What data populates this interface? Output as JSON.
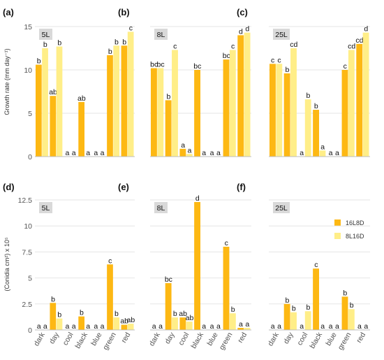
{
  "colors": {
    "series1": "#FDB813",
    "series2": "#FFEE88",
    "vol_box": "#D9D9D9",
    "grid": "#E6E6E6"
  },
  "legend": {
    "items": [
      "16L8D",
      "8L16D"
    ]
  },
  "chart_data": [
    {
      "type": "bar",
      "panel": "(a)",
      "volume": "5L",
      "categories": [
        "dark",
        "day",
        "cool",
        "black",
        "blue",
        "green",
        "red"
      ],
      "ylabel": "Growth rate (mm day⁻¹)",
      "ylim": [
        0,
        15
      ],
      "yticks": [
        "0",
        "5",
        "10",
        "15"
      ],
      "series": [
        {
          "name": "16L8D",
          "values": [
            10.6,
            7.0,
            0,
            6.3,
            0,
            11.7,
            12.8
          ],
          "sig": [
            "b",
            "ab",
            "a",
            "ab",
            "a",
            "b",
            "b"
          ]
        },
        {
          "name": "8L16D",
          "values": [
            12.5,
            12.7,
            0,
            0,
            0,
            12.8,
            14.4
          ],
          "sig": [
            "b",
            "b",
            "a",
            "a",
            "a",
            "b",
            "c"
          ]
        }
      ]
    },
    {
      "type": "bar",
      "panel": "(b)",
      "volume": "8L",
      "categories": [
        "dark",
        "day",
        "cool",
        "black",
        "blue",
        "green",
        "red"
      ],
      "ylim": [
        0,
        15
      ],
      "yticks": [
        "0",
        "5",
        "10",
        "15"
      ],
      "series": [
        {
          "name": "16L8D",
          "values": [
            10.2,
            6.5,
            0.9,
            10.0,
            0,
            11.2,
            14.0
          ],
          "sig": [
            "bc",
            "b",
            "a",
            "bc",
            "a",
            "bc",
            "d"
          ]
        },
        {
          "name": "8L16D",
          "values": [
            10.2,
            12.3,
            0.3,
            0,
            0,
            12.3,
            14.3
          ],
          "sig": [
            "bc",
            "c",
            "a",
            "a",
            "a",
            "c",
            "d"
          ]
        }
      ]
    },
    {
      "type": "bar",
      "panel": "(c)",
      "volume": "25L",
      "categories": [
        "dark",
        "day",
        "cool",
        "black",
        "blue",
        "green",
        "red"
      ],
      "ylim": [
        0,
        15
      ],
      "yticks": [
        "0",
        "5",
        "10",
        "15"
      ],
      "series": [
        {
          "name": "16L8D",
          "values": [
            10.7,
            9.6,
            0,
            5.4,
            0,
            10.0,
            13.0
          ],
          "sig": [
            "c",
            "b",
            "a",
            "b",
            "a",
            "c",
            "cd"
          ]
        },
        {
          "name": "8L16D",
          "values": [
            10.7,
            12.5,
            6.6,
            0.7,
            0,
            12.3,
            14.3
          ],
          "sig": [
            "c",
            "cd",
            "b",
            "a",
            "a",
            "cd",
            "d"
          ]
        }
      ]
    },
    {
      "type": "bar",
      "panel": "(d)",
      "volume": "5L",
      "categories": [
        "dark",
        "day",
        "cool",
        "black",
        "blue",
        "green",
        "red"
      ],
      "ylabel": "(Conidia cm²) x 10⁵",
      "ylim": [
        0,
        12.5
      ],
      "yticks": [
        "0",
        "2.5",
        "5",
        "7.5",
        "10",
        "12.5"
      ],
      "series": [
        {
          "name": "16L8D",
          "values": [
            0,
            2.6,
            0,
            1.3,
            0,
            6.3,
            0.5
          ],
          "sig": [
            "a",
            "b",
            "a",
            "b",
            "a",
            "c",
            "ab"
          ]
        },
        {
          "name": "8L16D",
          "values": [
            0,
            1.1,
            0,
            0,
            0,
            1.2,
            0.6
          ],
          "sig": [
            "a",
            "b",
            "a",
            "a",
            "a",
            "b",
            "ab"
          ]
        }
      ]
    },
    {
      "type": "bar",
      "panel": "(e)",
      "volume": "8L",
      "categories": [
        "dark",
        "day",
        "cool",
        "black",
        "blue",
        "green",
        "red"
      ],
      "ylim": [
        0,
        12.5
      ],
      "yticks": [
        "0",
        "2.5",
        "5",
        "7.5",
        "10",
        "12.5"
      ],
      "series": [
        {
          "name": "16L8D",
          "values": [
            0,
            4.5,
            1.2,
            12.3,
            0,
            8.0,
            0.2
          ],
          "sig": [
            "a",
            "bc",
            "ab",
            "d",
            "a",
            "c",
            "a"
          ]
        },
        {
          "name": "8L16D",
          "values": [
            0,
            1.2,
            0.8,
            0,
            0,
            1.6,
            0.2
          ],
          "sig": [
            "a",
            "b",
            "ab",
            "a",
            "a",
            "b",
            "a"
          ]
        }
      ]
    },
    {
      "type": "bar",
      "panel": "(f)",
      "volume": "25L",
      "categories": [
        "dark",
        "day",
        "cool",
        "black",
        "blue",
        "green",
        "red"
      ],
      "ylim": [
        0,
        12.5
      ],
      "yticks": [
        "0",
        "2.5",
        "5",
        "7.5",
        "10",
        "12.5"
      ],
      "series": [
        {
          "name": "16L8D",
          "values": [
            0,
            2.5,
            0,
            5.9,
            0,
            3.2,
            0
          ],
          "sig": [
            "a",
            "b",
            "a",
            "c",
            "a",
            "b",
            "a"
          ]
        },
        {
          "name": "8L16D",
          "values": [
            0,
            1.7,
            1.8,
            0,
            0,
            2.0,
            0
          ],
          "sig": [
            "a",
            "b",
            "b",
            "a",
            "a",
            "b",
            "a"
          ]
        }
      ]
    }
  ]
}
